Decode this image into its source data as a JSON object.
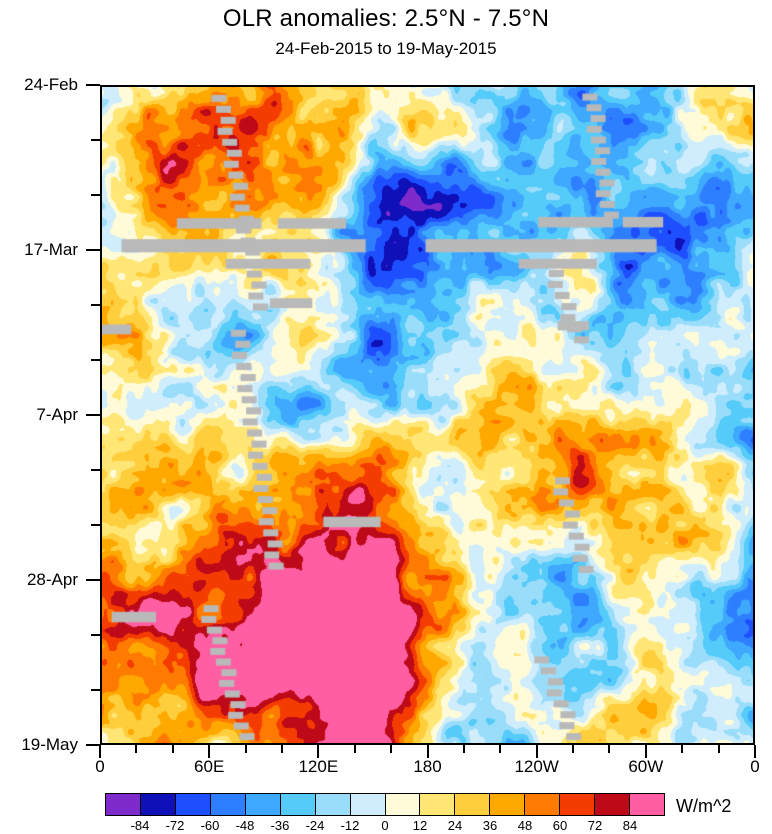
{
  "title": "OLR anomalies: 2.5°N - 7.5°N",
  "subtitle": "24-Feb-2015 to 19-May-2015",
  "chart_data": {
    "type": "heatmap",
    "title": "OLR anomalies: 2.5°N - 7.5°N",
    "subtitle": "24-Feb-2015 to 19-May-2015",
    "xlabel": "",
    "ylabel": "",
    "x_ticks": [
      "0",
      "60E",
      "120E",
      "180",
      "120W",
      "60W",
      "0"
    ],
    "y_ticks": [
      "24-Feb",
      "17-Mar",
      "7-Apr",
      "28-Apr",
      "19-May"
    ],
    "x_axis_note": "longitude, 0 to 360 degrees eastward",
    "y_axis_note": "time increasing downward, 24-Feb-2015 to 19-May-2015",
    "units": "W/m^2",
    "background_color": "#ffffff",
    "axis_color": "#000000",
    "missing_data_color": "#b9b9b9",
    "value_range": [
      -96,
      96
    ],
    "colorbar": {
      "position": "bottom",
      "units_label": "W/m^2",
      "levels": [
        -84,
        -72,
        -60,
        -48,
        -36,
        -24,
        -12,
        0,
        12,
        24,
        36,
        48,
        60,
        72,
        84
      ],
      "tick_labels": [
        "-84",
        "-72",
        "-60",
        "-48",
        "-36",
        "-24",
        "-12",
        "0",
        "12",
        "24",
        "36",
        "48",
        "60",
        "72",
        "84"
      ],
      "colors": [
        "#7F2BCC",
        "#0F10B8",
        "#1E4FFF",
        "#2E7FFF",
        "#3FA8FF",
        "#55CBFA",
        "#9ADDFB",
        "#CFEDFC",
        "#FFFBD8",
        "#FFE675",
        "#FFCE3C",
        "#FFA800",
        "#FF7A00",
        "#F53C00",
        "#BE0A18",
        "#FF5FA2"
      ]
    },
    "missing_regions": {
      "bars": [
        [
          0.115,
          0.2,
          0.13,
          0.016
        ],
        [
          0.27,
          0.2,
          0.105,
          0.016
        ],
        [
          0.67,
          0.198,
          0.115,
          0.016
        ],
        [
          0.8,
          0.198,
          0.062,
          0.016
        ],
        [
          0.03,
          0.232,
          0.375,
          0.02
        ],
        [
          0.497,
          0.232,
          0.355,
          0.02
        ],
        [
          0.19,
          0.262,
          0.13,
          0.015
        ],
        [
          0.64,
          0.262,
          0.12,
          0.015
        ],
        [
          0.258,
          0.322,
          0.065,
          0.015
        ],
        [
          0.7,
          0.357,
          0.048,
          0.014
        ],
        [
          0.0,
          0.362,
          0.045,
          0.015
        ],
        [
          0.34,
          0.655,
          0.088,
          0.016
        ],
        [
          0.015,
          0.8,
          0.068,
          0.016
        ]
      ],
      "diagonals": [
        [
          0.172,
          0.012,
          0.33,
          0.06
        ],
        [
          0.198,
          0.37,
          0.725,
          0.058
        ],
        [
          0.152,
          0.79,
          0.985,
          0.055
        ],
        [
          0.742,
          0.01,
          0.19,
          0.025
        ],
        [
          0.676,
          0.262,
          0.38,
          0.045
        ],
        [
          0.692,
          0.595,
          0.73,
          0.04
        ],
        [
          0.668,
          0.868,
          0.985,
          0.045
        ]
      ]
    },
    "description": "Time-longitude (Hovmoller) diagram of filled-contour OLR anomalies averaged over 2.5N-7.5N; negative anomalies (enhanced convection) in blues/purples, positive anomalies in yellows/reds; gray patches denote missing satellite data."
  }
}
